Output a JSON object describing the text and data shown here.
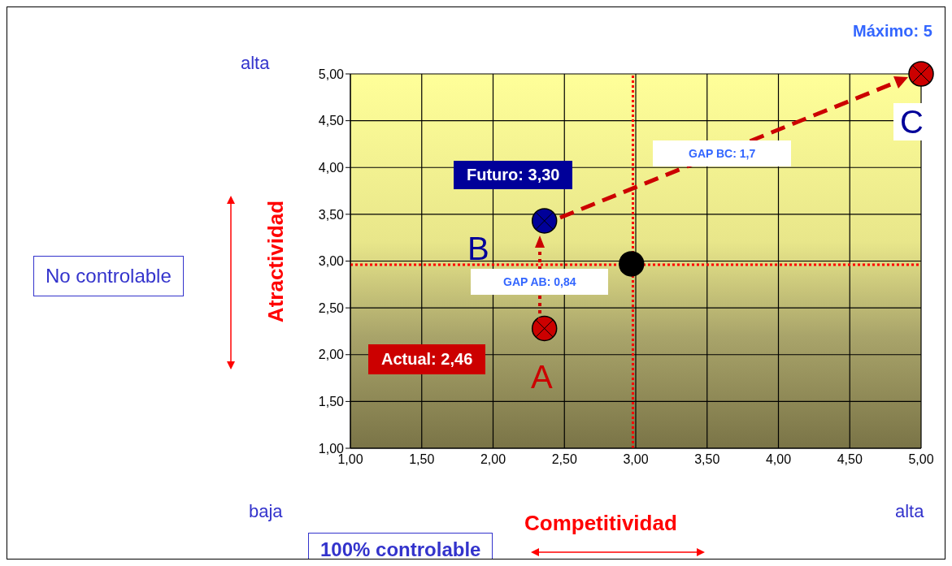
{
  "chart_data": {
    "type": "scatter",
    "xlabel": "Competitividad",
    "ylabel": "Atractividad",
    "xlim": [
      1,
      5
    ],
    "ylim": [
      1,
      5
    ],
    "xticks": [
      {
        "value": 1,
        "label": "1,00"
      },
      {
        "value": 1.5,
        "label": "1,50"
      },
      {
        "value": 2,
        "label": "2,00"
      },
      {
        "value": 2.5,
        "label": "2,50"
      },
      {
        "value": 3,
        "label": "3,00"
      },
      {
        "value": 3.5,
        "label": "3,50"
      },
      {
        "value": 4,
        "label": "4,00"
      },
      {
        "value": 4.5,
        "label": "4,50"
      },
      {
        "value": 5,
        "label": "5,00"
      }
    ],
    "yticks": [
      {
        "value": 1,
        "label": "1,00"
      },
      {
        "value": 1.5,
        "label": "1,50"
      },
      {
        "value": 2,
        "label": "2,00"
      },
      {
        "value": 2.5,
        "label": "2,50"
      },
      {
        "value": 3,
        "label": "3,00"
      },
      {
        "value": 3.5,
        "label": "3,50"
      },
      {
        "value": 4,
        "label": "4,00"
      },
      {
        "value": 4.5,
        "label": "4,50"
      },
      {
        "value": 5,
        "label": "5,00"
      }
    ],
    "grid": true,
    "legend": false,
    "marker": "circle",
    "series": [
      {
        "x": [
          2.36,
          2.36,
          2.97,
          5
        ],
        "values": [
          2.28,
          3.43,
          2.97,
          5
        ],
        "colors": [
          "#cc0000",
          "#000099",
          "#000000",
          "#cc0000"
        ]
      }
    ],
    "ref_lines": [
      {
        "axis": "x",
        "value": 2.98,
        "color": "#ff0000",
        "line_style": "dotted"
      },
      {
        "axis": "y",
        "value": 2.96,
        "color": "#ff0000",
        "line_style": "dotted"
      }
    ],
    "annotations": [
      "Máximo: 5",
      "Futuro: 3,30",
      "Actual: 2,46",
      "GAP AB: 0,84",
      "GAP BC: 1,7",
      "A",
      "B",
      "C",
      "alta",
      "baja",
      "alta",
      "No controlable",
      "100% controlable"
    ]
  }
}
